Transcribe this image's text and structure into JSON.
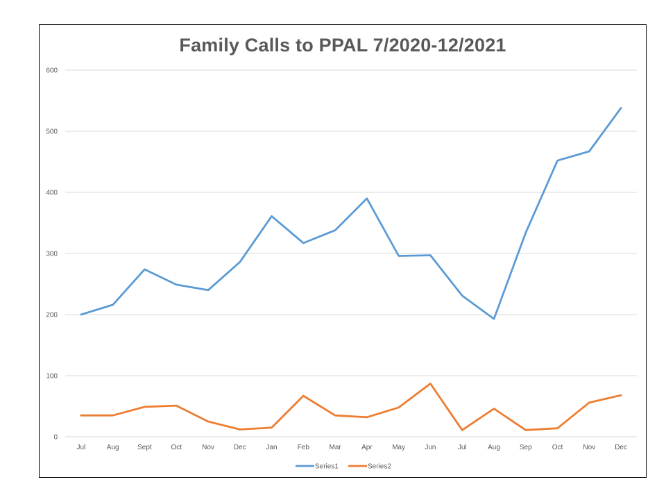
{
  "chart_data": {
    "type": "line",
    "title": "Family Calls to PPAL 7/2020-12/2021",
    "xlabel": "",
    "ylabel": "",
    "ylim": [
      0,
      600
    ],
    "yticks": [
      0,
      100,
      200,
      300,
      400,
      500,
      600
    ],
    "grid": true,
    "legend_position": "bottom",
    "categories": [
      "Jul",
      "Aug",
      "Sept",
      "Oct",
      "Nov",
      "Dec",
      "Jan",
      "Feb",
      "Mar",
      "Apr",
      "May",
      "Jun",
      "Jul",
      "Aug",
      "Sep",
      "Oct",
      "Nov",
      "Dec"
    ],
    "series": [
      {
        "name": "Series1",
        "color": "#5B9BD5",
        "values": [
          200,
          216,
          274,
          249,
          240,
          286,
          361,
          317,
          338,
          390,
          296,
          297,
          231,
          193,
          334,
          452,
          467,
          538
        ]
      },
      {
        "name": "Series2",
        "color": "#ED7D31",
        "values": [
          35,
          35,
          49,
          51,
          25,
          12,
          15,
          67,
          35,
          32,
          48,
          87,
          11,
          46,
          11,
          14,
          56,
          68
        ]
      }
    ]
  }
}
